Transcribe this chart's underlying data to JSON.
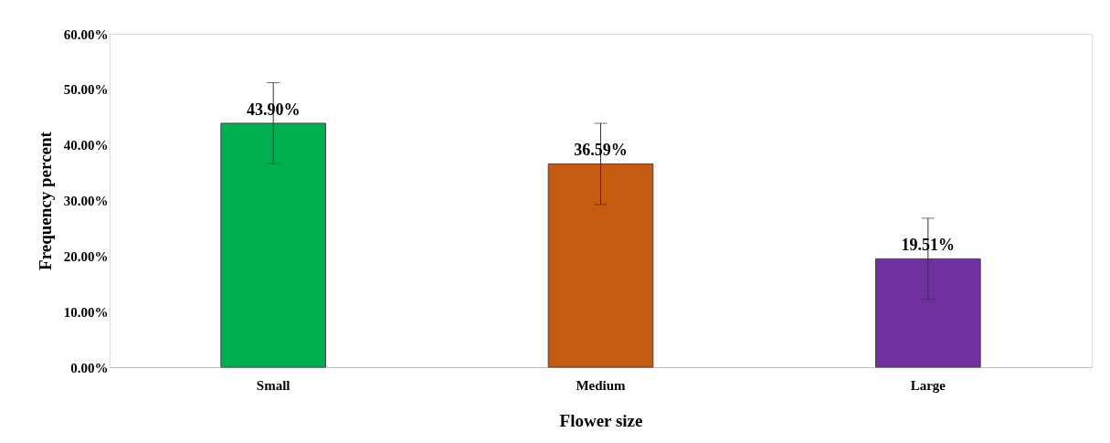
{
  "chart_data": {
    "type": "bar",
    "xlabel": "Flower size",
    "ylabel": "Frequency percent",
    "categories": [
      "Small",
      "Medium",
      "Large"
    ],
    "values": [
      43.9,
      36.59,
      19.51
    ],
    "colors": [
      "#00b050",
      "#c55a11",
      "#7030a0"
    ],
    "errors": [
      7.3,
      7.3,
      7.3
    ],
    "value_labels": [
      "43.90%",
      "36.59%",
      "19.51%"
    ],
    "ylim": [
      0,
      60
    ],
    "yticks": [
      {
        "value": 0,
        "label": "0.00%"
      },
      {
        "value": 10,
        "label": "10.00%"
      },
      {
        "value": 20,
        "label": "20.00%"
      },
      {
        "value": 30,
        "label": "30.00%"
      },
      {
        "value": 40,
        "label": "40.00%"
      },
      {
        "value": 50,
        "label": "50.00%"
      },
      {
        "value": 60,
        "label": "60.00%"
      }
    ],
    "grid": false
  }
}
